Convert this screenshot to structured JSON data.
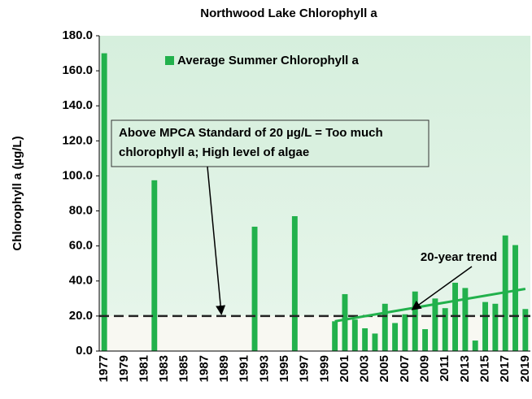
{
  "chart_data": {
    "type": "bar",
    "title": "Northwood Lake Chlorophyll a",
    "y_label": "Chlorophyll a (µg/L)",
    "categories": [
      "1977",
      null,
      "1979",
      null,
      "1981",
      null,
      "1983",
      null,
      "1985",
      null,
      "1987",
      null,
      "1989",
      null,
      "1991",
      null,
      "1993",
      null,
      "1995",
      null,
      "1997",
      null,
      "1999",
      null,
      "2001",
      null,
      "2003",
      null,
      "2005",
      null,
      "2007",
      null,
      "2009",
      null,
      "2011",
      null,
      "2013",
      null,
      "2015",
      null,
      "2017",
      null,
      "2019"
    ],
    "series": [
      {
        "name": "Average Summer Chlorophyll a",
        "color": "#22b14c",
        "values": [
          170,
          null,
          null,
          null,
          null,
          97.5,
          null,
          null,
          null,
          null,
          null,
          null,
          null,
          null,
          null,
          71,
          null,
          null,
          null,
          77,
          null,
          null,
          null,
          17,
          32.5,
          18,
          13,
          10,
          27,
          16,
          21,
          34,
          12.5,
          30,
          24.5,
          39,
          36,
          6,
          28,
          27,
          66,
          60.5,
          24
        ]
      }
    ],
    "ylim": [
      0,
      180
    ],
    "yticks": [
      {
        "value": 0,
        "label": "0.0"
      },
      {
        "value": 20,
        "label": "20.0"
      },
      {
        "value": 40,
        "label": "40.0"
      },
      {
        "value": 60,
        "label": "60.0"
      },
      {
        "value": 80,
        "label": "80.0"
      },
      {
        "value": 100,
        "label": "100.0"
      },
      {
        "value": 120,
        "label": "120.0"
      },
      {
        "value": 140,
        "label": "140.0"
      },
      {
        "value": 160,
        "label": "160.0"
      },
      {
        "value": 180,
        "label": "180.0"
      }
    ],
    "standard": {
      "value": 20,
      "label": "Above MPCA Standard of 20 µg/L = Too much",
      "label2": "chlorophyll a; High level of algae"
    },
    "trend": {
      "name": "20-year trend",
      "color": "#22b14c",
      "x": [
        2000,
        2019
      ],
      "values": [
        17,
        35.5
      ]
    },
    "legend": "top-left"
  }
}
